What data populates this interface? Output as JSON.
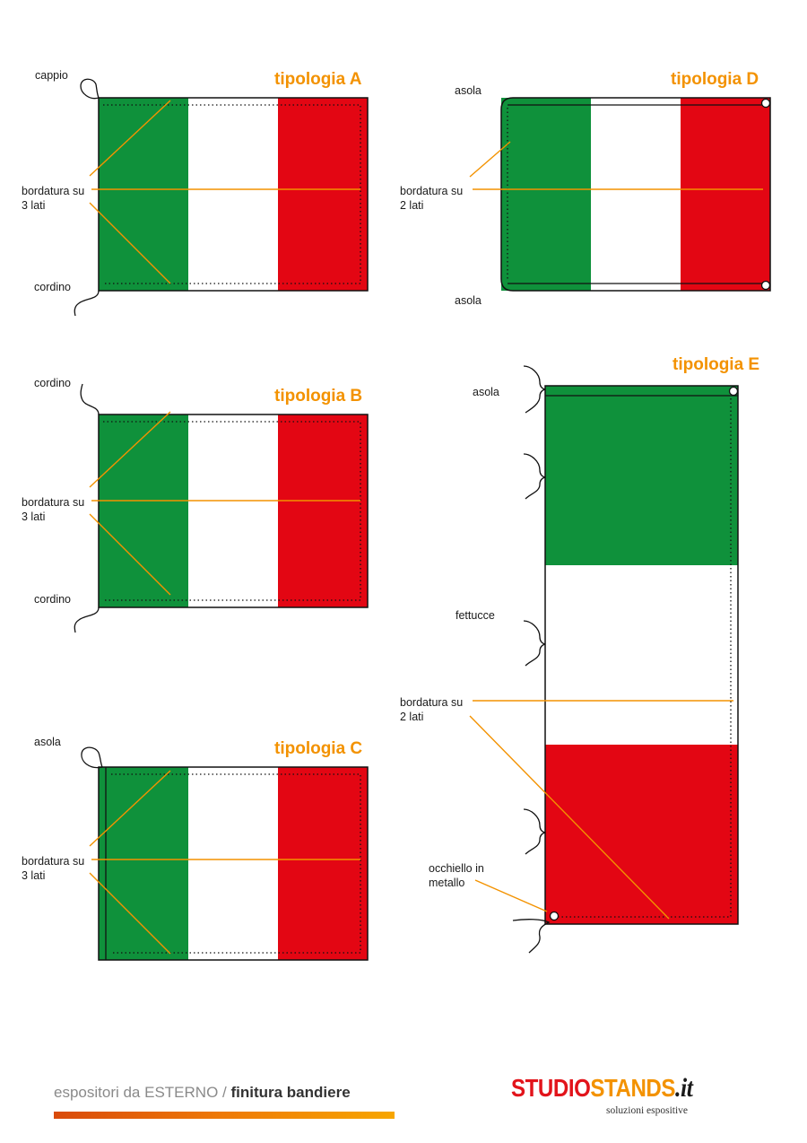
{
  "colors": {
    "green": "#0f913b",
    "white": "#ffffff",
    "red": "#e30613",
    "accent": "#f39200",
    "outline": "#111111"
  },
  "flags": {
    "a": {
      "title": "tipologia A",
      "labels": {
        "top": "cappio",
        "border": "bordatura su\n3 lati",
        "bottom": "cordino"
      }
    },
    "b": {
      "title": "tipologia B",
      "labels": {
        "top": "cordino",
        "border": "bordatura su\n3 lati",
        "bottom": "cordino"
      }
    },
    "c": {
      "title": "tipologia C",
      "labels": {
        "top": "asola",
        "border": "bordatura su\n3 lati"
      }
    },
    "d": {
      "title": "tipologia D",
      "labels": {
        "top": "asola",
        "border": "bordatura su\n2 lati",
        "bottom": "asola"
      }
    },
    "e": {
      "title": "tipologia E",
      "labels": {
        "top": "asola",
        "tapes": "fettucce",
        "border": "bordatura su\n2 lati",
        "eyelet": "occhiello in\nmetallo"
      }
    }
  },
  "footer": {
    "prefix": "espositori da ESTERNO / ",
    "suffix": "finitura bandiere"
  },
  "logo": {
    "part1": "STUDIO",
    "part2": "STANDS",
    "part3": ".it",
    "tagline": "soluzioni espositive"
  }
}
